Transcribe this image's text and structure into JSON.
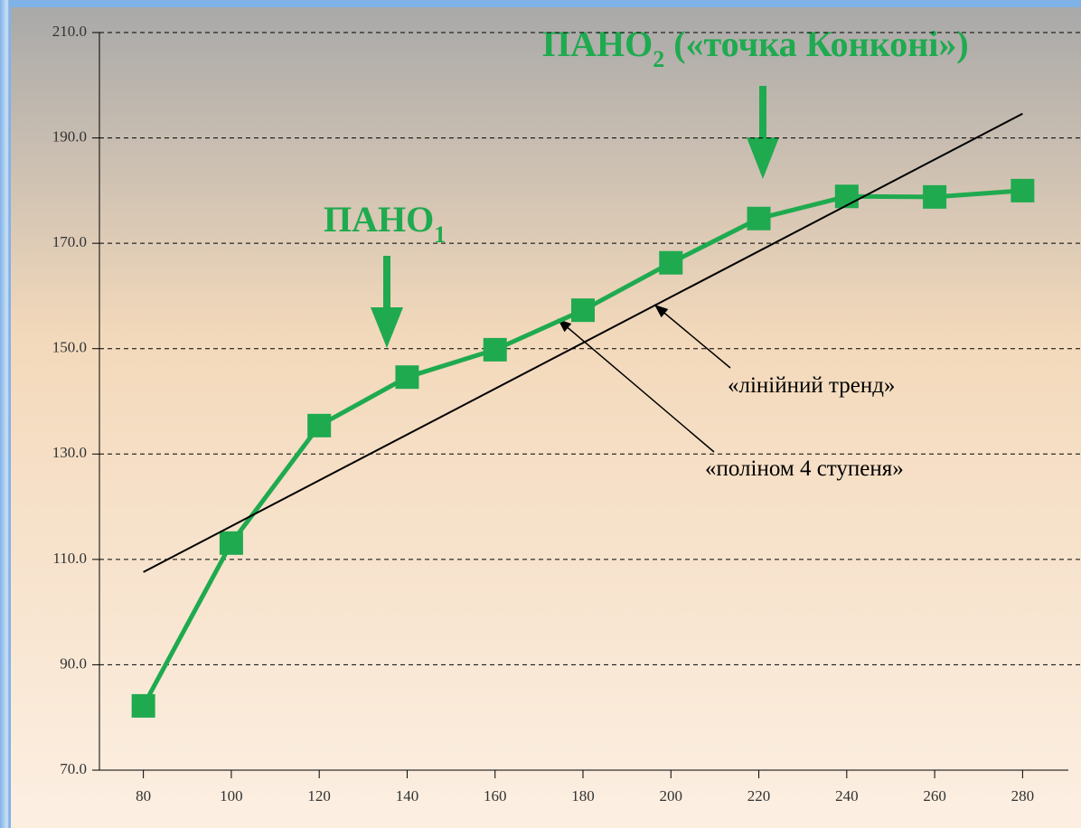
{
  "chart_data": {
    "type": "line",
    "x": [
      80,
      100,
      120,
      140,
      160,
      180,
      200,
      220,
      240,
      260,
      280
    ],
    "series": [
      {
        "color": "#1faa4f",
        "values": [
          82.2,
          113.1,
          135.4,
          144.6,
          149.8,
          157.3,
          166.3,
          174.7,
          178.9,
          178.8,
          180.0
        ]
      },
      {
        "color": "#000000",
        "x": [
          80,
          280
        ],
        "values": [
          107.6,
          194.6
        ]
      }
    ],
    "xlim": [
      70,
      290
    ],
    "ylim": [
      70,
      210
    ],
    "xticks": [
      80,
      100,
      120,
      140,
      160,
      180,
      200,
      220,
      240,
      260,
      280
    ],
    "yticks": [
      {
        "value": 70,
        "label": "70.0"
      },
      {
        "value": 90,
        "label": "90.0"
      },
      {
        "value": 110,
        "label": "110.0"
      },
      {
        "value": 130,
        "label": "130.0"
      },
      {
        "value": 150,
        "label": "150.0"
      },
      {
        "value": 170,
        "label": "170.0"
      },
      {
        "value": 190,
        "label": "190.0"
      },
      {
        "value": 210,
        "label": "210.0"
      }
    ],
    "grid": true,
    "annotations": {
      "pano1": {
        "text": "ПАНО",
        "sub": "1"
      },
      "pano2": {
        "text": "ПАНО",
        "sub": "2",
        "rest": " («точка Конконі»)"
      },
      "trend": "«лінійний тренд»",
      "poly": "«поліном 4 ступеня»"
    }
  }
}
